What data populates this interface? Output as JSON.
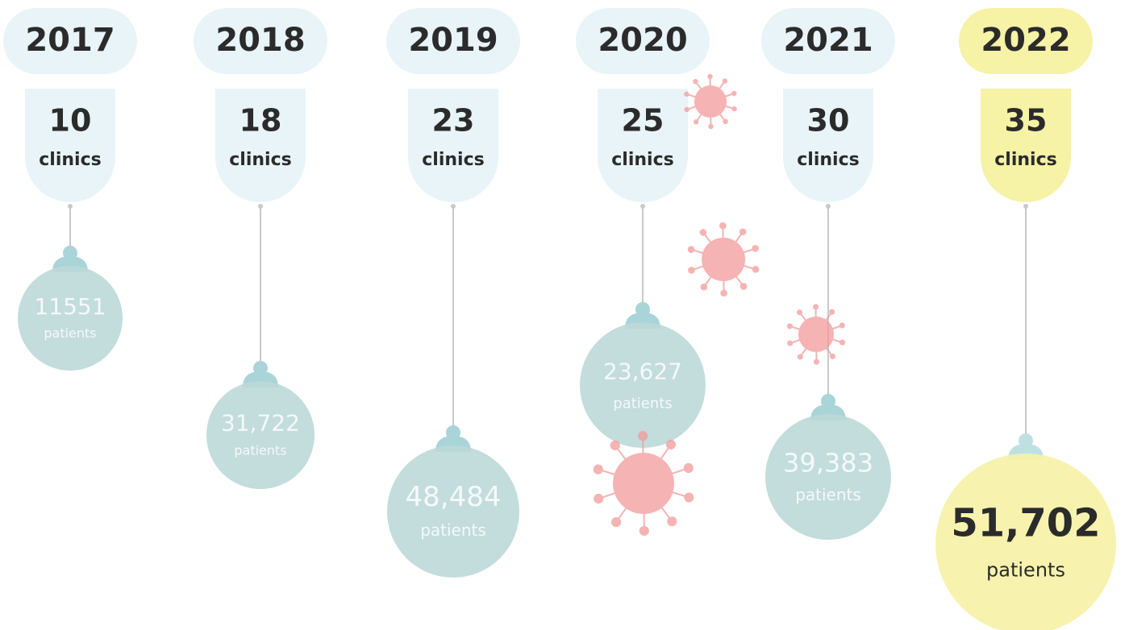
{
  "columns": [
    {
      "year": "2017",
      "clinics": "10",
      "clinics_unit": "clinics",
      "patients": "11551",
      "patients_unit": "patients"
    },
    {
      "year": "2018",
      "clinics": "18",
      "clinics_unit": "clinics",
      "patients": "31,722",
      "patients_unit": "patients"
    },
    {
      "year": "2019",
      "clinics": "23",
      "clinics_unit": "clinics",
      "patients": "48,484",
      "patients_unit": "patients"
    },
    {
      "year": "2020",
      "clinics": "25",
      "clinics_unit": "clinics",
      "patients": "23,627",
      "patients_unit": "patients"
    },
    {
      "year": "2021",
      "clinics": "30",
      "clinics_unit": "clinics",
      "patients": "39,383",
      "patients_unit": "patients"
    },
    {
      "year": "2022",
      "clinics": "35",
      "clinics_unit": "clinics",
      "patients": "51,702",
      "patients_unit": "patients"
    }
  ]
}
